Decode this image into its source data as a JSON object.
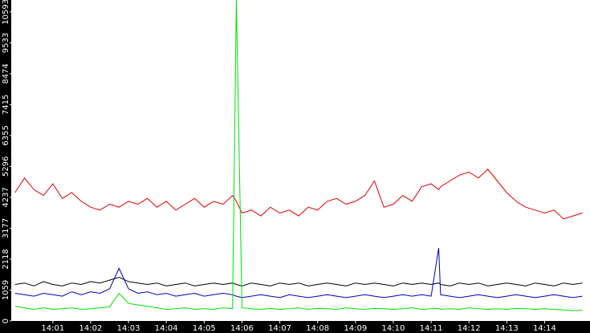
{
  "chart_data": {
    "type": "line",
    "x": [
      0,
      0.25,
      0.5,
      0.75,
      1,
      1.25,
      1.5,
      1.75,
      2,
      2.25,
      2.5,
      2.75,
      3,
      3.25,
      3.5,
      3.75,
      4,
      4.25,
      4.5,
      4.75,
      5,
      5.25,
      5.5,
      5.75,
      5.85,
      6,
      6.25,
      6.5,
      6.75,
      7,
      7.25,
      7.5,
      7.75,
      8,
      8.25,
      8.5,
      8.75,
      9,
      9.25,
      9.5,
      9.75,
      10,
      10.25,
      10.5,
      10.75,
      11,
      11.2,
      11.25,
      11.5,
      11.75,
      12,
      12.25,
      12.5,
      12.75,
      13,
      13.25,
      13.5,
      13.75,
      14,
      14.25,
      14.5,
      14.75,
      15
    ],
    "xlim": [
      -0.1,
      15.2
    ],
    "xticks": [
      {
        "value": 1,
        "label": "14:01"
      },
      {
        "value": 2,
        "label": "14:02"
      },
      {
        "value": 3,
        "label": "14:03"
      },
      {
        "value": 4,
        "label": "14:04"
      },
      {
        "value": 5,
        "label": "14:05"
      },
      {
        "value": 6,
        "label": "14:06"
      },
      {
        "value": 7,
        "label": "14:07"
      },
      {
        "value": 8,
        "label": "14:08"
      },
      {
        "value": 9,
        "label": "14:09"
      },
      {
        "value": 10,
        "label": "14:10"
      },
      {
        "value": 11,
        "label": "14:11"
      },
      {
        "value": 12,
        "label": "14:12"
      },
      {
        "value": 13,
        "label": "14:13"
      },
      {
        "value": 14,
        "label": "14:14"
      }
    ],
    "ylim": [
      0,
      11000
    ],
    "yticks": [
      0,
      1059,
      2118,
      3177,
      4237,
      5296,
      6355,
      7415,
      8474,
      9533,
      10593
    ],
    "grid": false,
    "series": [
      {
        "color": "#e00000",
        "values": [
          4400,
          4900,
          4500,
          4300,
          4700,
          4200,
          4400,
          4100,
          3900,
          3800,
          4000,
          3900,
          4100,
          4000,
          4200,
          3900,
          4100,
          3800,
          4000,
          4200,
          3900,
          4100,
          4000,
          4300,
          4100,
          3700,
          3800,
          3600,
          3900,
          3700,
          3800,
          3600,
          3900,
          3800,
          4100,
          4200,
          4000,
          4100,
          4300,
          4800,
          3900,
          4000,
          4300,
          4100,
          4600,
          4700,
          4500,
          4600,
          4800,
          5000,
          5100,
          4900,
          5200,
          4800,
          4400,
          4100,
          3900,
          3800,
          3700,
          3800,
          3500,
          3600,
          3700
        ]
      },
      {
        "color": "#000000",
        "values": [
          1250,
          1300,
          1200,
          1350,
          1250,
          1200,
          1300,
          1250,
          1350,
          1300,
          1400,
          1500,
          1350,
          1300,
          1250,
          1300,
          1200,
          1250,
          1300,
          1200,
          1250,
          1300,
          1250,
          1300,
          1250,
          1200,
          1300,
          1250,
          1200,
          1300,
          1250,
          1300,
          1200,
          1250,
          1300,
          1250,
          1200,
          1300,
          1250,
          1300,
          1250,
          1200,
          1300,
          1250,
          1300,
          1250,
          1300,
          1250,
          1200,
          1300,
          1250,
          1300,
          1200,
          1250,
          1300,
          1250,
          1200,
          1300,
          1250,
          1200,
          1300,
          1250,
          1300
        ]
      },
      {
        "color": "#0000c0",
        "values": [
          950,
          900,
          850,
          950,
          900,
          850,
          1000,
          900,
          1000,
          950,
          1100,
          1800,
          1100,
          950,
          1000,
          900,
          950,
          850,
          900,
          950,
          850,
          900,
          950,
          900,
          850,
          800,
          850,
          900,
          850,
          800,
          900,
          850,
          800,
          850,
          900,
          850,
          800,
          850,
          900,
          850,
          800,
          850,
          900,
          850,
          900,
          850,
          2500,
          900,
          850,
          800,
          850,
          900,
          850,
          800,
          850,
          900,
          850,
          800,
          850,
          900,
          850,
          800,
          850
        ]
      },
      {
        "color": "#00e000",
        "values": [
          500,
          450,
          400,
          450,
          400,
          420,
          450,
          400,
          420,
          450,
          480,
          950,
          600,
          550,
          500,
          450,
          400,
          420,
          450,
          400,
          420,
          400,
          450,
          420,
          11000,
          450,
          420,
          400,
          430,
          400,
          420,
          450,
          400,
          430,
          420,
          400,
          450,
          420,
          400,
          430,
          420,
          400,
          420,
          450,
          400,
          420,
          430,
          400,
          420,
          400,
          450,
          420,
          400,
          420,
          400,
          430,
          420,
          400,
          420,
          400,
          380,
          350,
          370
        ]
      }
    ]
  }
}
